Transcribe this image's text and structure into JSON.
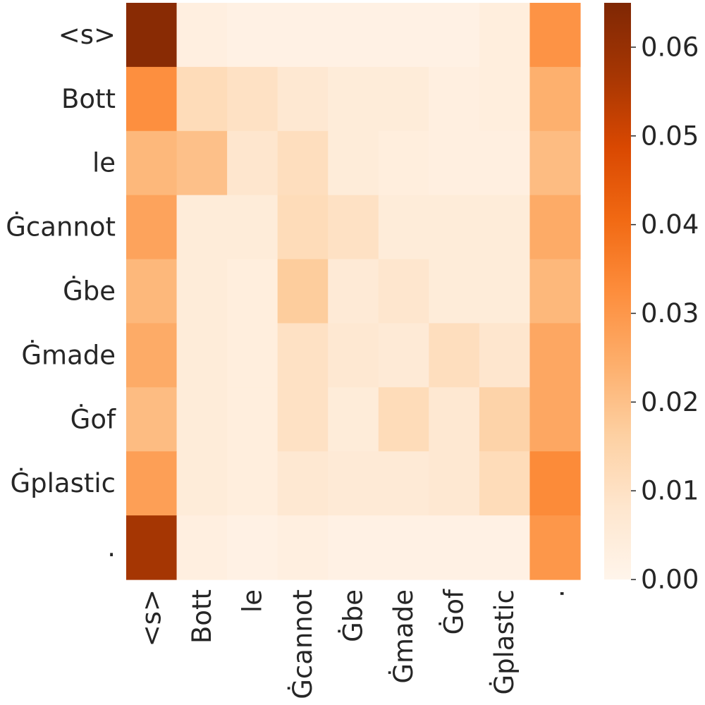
{
  "chart_data": {
    "type": "heatmap",
    "title": "",
    "xlabel": "",
    "ylabel": "",
    "x_labels": [
      "<s>",
      "Bott",
      "le",
      "Ġcannot",
      "Ġbe",
      "Ġmade",
      "Ġof",
      "Ġplastic",
      "."
    ],
    "y_labels": [
      "<s>",
      "Bott",
      "le",
      "Ġcannot",
      "Ġbe",
      "Ġmade",
      "Ġof",
      "Ġplastic",
      "."
    ],
    "values": [
      [
        0.063,
        0.003,
        0.002,
        0.002,
        0.002,
        0.002,
        0.002,
        0.004,
        0.031
      ],
      [
        0.032,
        0.012,
        0.01,
        0.007,
        0.005,
        0.005,
        0.003,
        0.004,
        0.024
      ],
      [
        0.022,
        0.02,
        0.008,
        0.011,
        0.005,
        0.004,
        0.003,
        0.003,
        0.021
      ],
      [
        0.027,
        0.005,
        0.005,
        0.012,
        0.01,
        0.005,
        0.005,
        0.005,
        0.025
      ],
      [
        0.022,
        0.005,
        0.004,
        0.017,
        0.006,
        0.008,
        0.005,
        0.005,
        0.022
      ],
      [
        0.025,
        0.005,
        0.004,
        0.01,
        0.007,
        0.006,
        0.011,
        0.008,
        0.026
      ],
      [
        0.021,
        0.005,
        0.004,
        0.01,
        0.005,
        0.012,
        0.007,
        0.015,
        0.026
      ],
      [
        0.028,
        0.005,
        0.004,
        0.007,
        0.006,
        0.006,
        0.007,
        0.012,
        0.033
      ],
      [
        0.057,
        0.003,
        0.002,
        0.003,
        0.002,
        0.002,
        0.002,
        0.002,
        0.03
      ]
    ],
    "colorbar": {
      "colormap": "Oranges",
      "range": [
        0,
        0.065
      ],
      "ticks": [
        0.0,
        0.01,
        0.02,
        0.03,
        0.04,
        0.05,
        0.06
      ],
      "tick_labels": [
        "0.00",
        "0.01",
        "0.02",
        "0.03",
        "0.04",
        "0.05",
        "0.06"
      ]
    },
    "grid": false,
    "legend": "colorbar-right"
  }
}
